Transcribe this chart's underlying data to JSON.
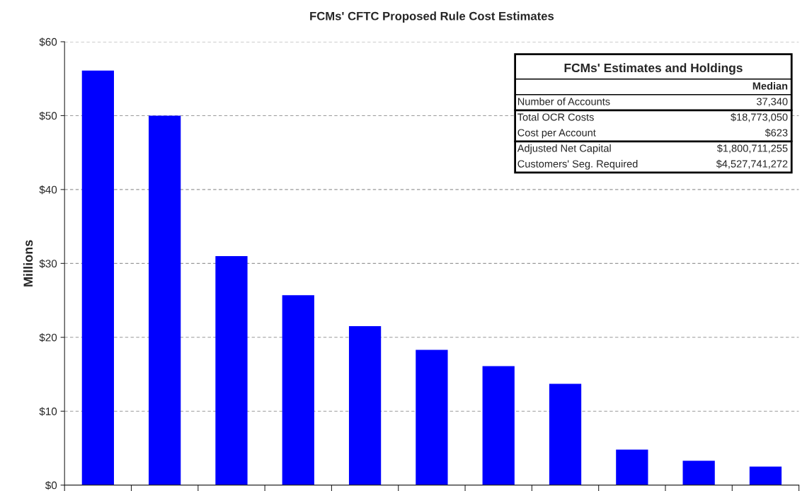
{
  "chart_data": {
    "type": "bar",
    "title": "FCMs' CFTC Proposed Rule Cost Estimates",
    "ylabel": "Millions",
    "categories": [
      null,
      null,
      null,
      null,
      null,
      null,
      null,
      null,
      null,
      null,
      null
    ],
    "values": [
      56.1,
      50.0,
      31.0,
      25.7,
      21.5,
      18.3,
      16.1,
      13.7,
      4.8,
      3.3,
      2.5
    ],
    "color": "#0000ff",
    "ylim": [
      0,
      60
    ],
    "yticks": [
      {
        "value": 0,
        "label": "$0"
      },
      {
        "value": 10,
        "label": "$10"
      },
      {
        "value": 20,
        "label": "$20"
      },
      {
        "value": 30,
        "label": "$30"
      },
      {
        "value": 40,
        "label": "$40"
      },
      {
        "value": 50,
        "label": "$50"
      },
      {
        "value": 60,
        "label": "$60"
      }
    ],
    "grid": "y",
    "annotations": [
      "FCMs' Estimates and Holdings",
      "Median",
      "Number of Accounts",
      "37,340",
      "Total OCR Costs",
      "$18,773,050",
      "Cost per Account",
      "$623",
      "Adjusted Net Capital",
      "$1,800,711,255",
      "Customers' Seg. Required",
      "$4,527,741,272"
    ]
  }
}
